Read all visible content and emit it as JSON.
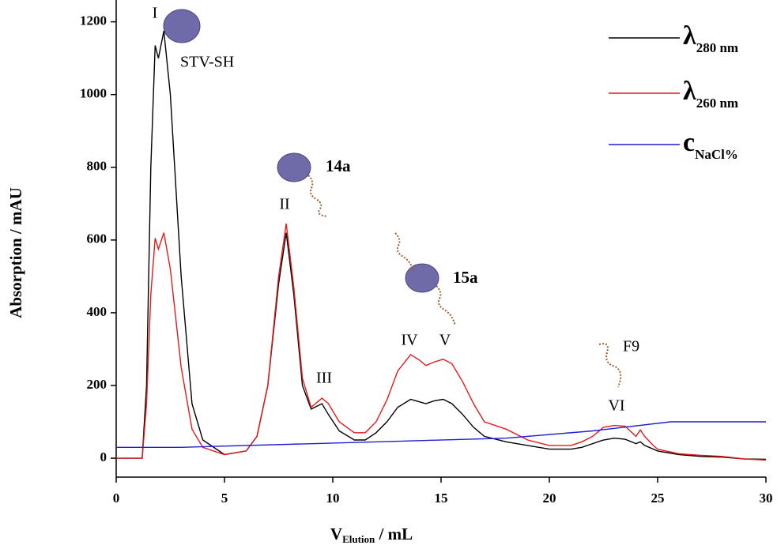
{
  "chart_data": {
    "type": "line",
    "x_label": "V",
    "x_label_sub": "Elution",
    "x_label_rest": " / mL",
    "y_label": "Absorption / mAU",
    "xlim": [
      0,
      30
    ],
    "xticks": [
      0,
      5,
      10,
      15,
      20,
      25,
      30
    ],
    "ylim": [
      -52,
      1260
    ],
    "yticks": [
      0,
      200,
      400,
      600,
      800,
      1000,
      1200
    ],
    "legend": "upper right",
    "annotations": [
      "I",
      "STV-SH",
      "14a",
      "II",
      "15a",
      "IV",
      "V",
      "III",
      "F9",
      "VI"
    ],
    "series": [
      {
        "name": "λ",
        "name_sub": "280 nm",
        "color": "#000000",
        "x": [
          0,
          1.2,
          1.4,
          1.6,
          1.8,
          1.95,
          2.2,
          2.5,
          3,
          3.5,
          4,
          5,
          6,
          6.5,
          7,
          7.5,
          7.85,
          8.2,
          8.6,
          9,
          9.5,
          9.8,
          10.3,
          11,
          11.5,
          12,
          12.5,
          13,
          13.6,
          14,
          14.3,
          14.7,
          15.1,
          15.5,
          16,
          16.5,
          17,
          18,
          19,
          20,
          21,
          21.5,
          22,
          22.5,
          23,
          23.5,
          24,
          24.2,
          24.4,
          25,
          26,
          27,
          28,
          29,
          30
        ],
        "values": [
          0,
          0,
          200,
          800,
          1135,
          1100,
          1175,
          1000,
          500,
          150,
          50,
          10,
          20,
          60,
          200,
          480,
          620,
          450,
          200,
          135,
          150,
          120,
          75,
          50,
          50,
          70,
          100,
          140,
          162,
          155,
          150,
          158,
          162,
          150,
          120,
          85,
          60,
          45,
          35,
          25,
          25,
          30,
          40,
          50,
          55,
          52,
          40,
          45,
          35,
          20,
          10,
          5,
          3,
          -2,
          -3
        ]
      },
      {
        "name": "λ",
        "name_sub": "260 nm",
        "color": "#e31a1c",
        "x": [
          0,
          1.2,
          1.4,
          1.6,
          1.8,
          1.95,
          2.2,
          2.5,
          3,
          3.5,
          4,
          5,
          6,
          6.5,
          7,
          7.5,
          7.85,
          8.2,
          8.6,
          9,
          9.5,
          9.8,
          10.3,
          11,
          11.5,
          12,
          12.5,
          13,
          13.6,
          14,
          14.3,
          14.7,
          15.1,
          15.5,
          16,
          16.5,
          17,
          18,
          19,
          20,
          21,
          21.5,
          22,
          22.5,
          23,
          23.5,
          24,
          24.2,
          24.4,
          24.8,
          25,
          26,
          27,
          28,
          29,
          30
        ],
        "values": [
          0,
          0,
          150,
          450,
          605,
          575,
          620,
          520,
          250,
          80,
          30,
          10,
          20,
          60,
          200,
          500,
          645,
          470,
          220,
          140,
          165,
          150,
          100,
          70,
          70,
          100,
          160,
          240,
          285,
          270,
          255,
          265,
          272,
          260,
          210,
          150,
          100,
          80,
          50,
          35,
          35,
          45,
          60,
          85,
          90,
          88,
          60,
          78,
          60,
          35,
          25,
          12,
          8,
          5,
          -2,
          -5
        ]
      },
      {
        "name": "c",
        "name_sub": "NaCl%",
        "color": "#1f1fd0",
        "x": [
          0,
          3,
          18,
          22,
          25.6,
          30
        ],
        "values": [
          30,
          30,
          55,
          75,
          100,
          100
        ]
      }
    ]
  }
}
